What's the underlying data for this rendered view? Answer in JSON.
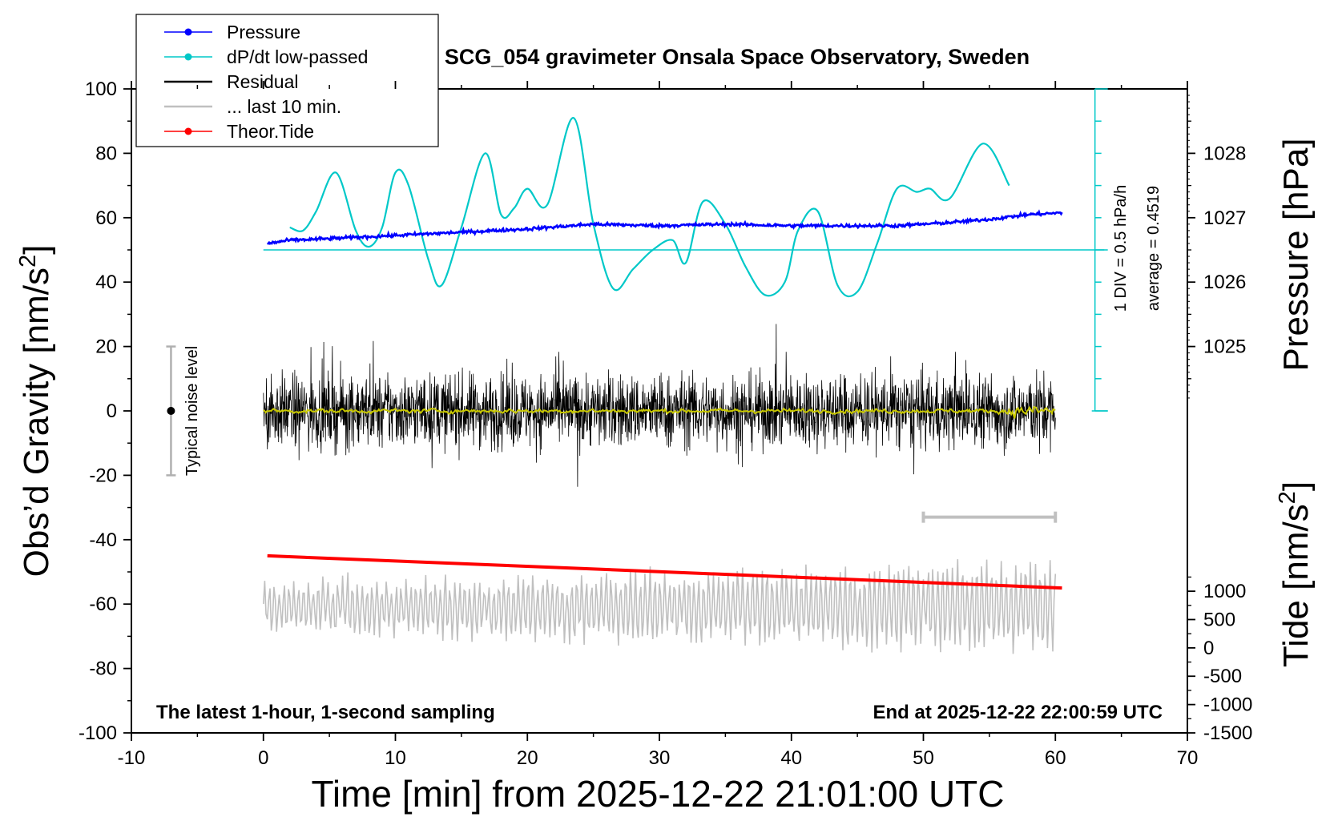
{
  "chart_data": {
    "type": "line",
    "title": "SCG_054 gravimeter Onsala Space Observatory, Sweden",
    "xlabel": "Time [min] from 2025-12-22 21:01:00 UTC",
    "ylabel_left": "Obs’d Gravity [nm/s",
    "ylabel_left_sup": "2",
    "ylabel_left_end": "]",
    "ylabel_right_top": "Pressure [hPa]",
    "ylabel_right_bottom": "Tide [nm/s",
    "ylabel_right_bottom_sup": "2",
    "ylabel_right_bottom_end": "]",
    "xlim": [
      -10,
      70
    ],
    "ylim": [
      -100,
      100
    ],
    "x_ticks": [
      "-10",
      "0",
      "10",
      "20",
      "30",
      "40",
      "50",
      "60",
      "70"
    ],
    "y_ticks": [
      "-100",
      "-80",
      "-60",
      "-40",
      "-20",
      "0",
      "20",
      "40",
      "60",
      "80",
      "100"
    ],
    "pressure_ticks": [
      "1025",
      "1026",
      "1027",
      "1028"
    ],
    "pressure_axis": {
      "gravity_at_1025": 20,
      "gravity_per_hPa": 20
    },
    "tide_ticks": [
      "-1500",
      "-1000",
      "-500",
      "0",
      "500",
      "1000"
    ],
    "tide_axis": {
      "gravity_at_minus1500": -100,
      "gravity_per_500": 8.8
    },
    "legend": [
      {
        "label": "Pressure",
        "color": "#0000ff",
        "marker": true
      },
      {
        "label": "dP/dt low-passed",
        "color": "#00c8c8",
        "marker": true
      },
      {
        "label": "Residual",
        "color": "#000000",
        "marker": false
      },
      {
        "label": "... last 10 min.",
        "color": "#c0c0c0",
        "marker": false
      },
      {
        "label": "Theor.Tide",
        "color": "#ff0000",
        "marker": true
      }
    ],
    "annotations": {
      "noise_label": "Typical noise level",
      "noise_range": [
        -20,
        20
      ],
      "noise_x": -7,
      "div_label": "1 DIV = 0.5 hPa/h",
      "average_label": "average = 0.4519",
      "dpdt_baseline": 50,
      "dpdt_scale_x": 63,
      "dpdt_scale_range": [
        0,
        100
      ],
      "bottom_left": "The latest 1-hour, 1-second sampling",
      "bottom_right": "End at 2025-12-22 22:00:59 UTC",
      "last10_bar": [
        50,
        60
      ],
      "last10_bar_y": -33
    },
    "series": [
      {
        "name": "Pressure",
        "color": "#0000ff",
        "noise": 0.5,
        "x": [
          0.3,
          2,
          5,
          10,
          15,
          20,
          25,
          30,
          35,
          40,
          45,
          48,
          52,
          55,
          58,
          60.5
        ],
        "y": [
          52,
          53,
          53.5,
          54.5,
          55.5,
          56.5,
          58,
          57.5,
          58,
          57.5,
          57.5,
          57.5,
          58.5,
          59.5,
          61,
          61.5
        ]
      },
      {
        "name": "dP/dt low-passed",
        "color": "#00c8c8",
        "x": [
          2,
          3,
          4,
          5.5,
          7,
          8,
          9,
          10,
          11,
          12.5,
          13.5,
          15,
          16.8,
          18,
          19,
          20,
          21.5,
          23.5,
          25,
          26.5,
          28,
          29.5,
          31,
          32,
          33.3,
          35,
          36.5,
          38,
          39.5,
          40.5,
          42,
          43.5,
          45,
          46.5,
          48,
          49.5,
          50.5,
          52,
          54.5,
          56.5
        ],
        "y": [
          57,
          56,
          62,
          74,
          56,
          51,
          57,
          74,
          70,
          47,
          39,
          57,
          80,
          61,
          63,
          69,
          64,
          91,
          58,
          38,
          44,
          50,
          53,
          46,
          65,
          58,
          45,
          36,
          40,
          56,
          62,
          39,
          37,
          52,
          69,
          68,
          69,
          66,
          83,
          70
        ]
      },
      {
        "name": "Residual",
        "color": "#000000",
        "noise": 11,
        "x": [
          0,
          60
        ],
        "y": [
          0,
          0
        ]
      },
      {
        "name": "Residual low-passed",
        "color": "#c8c800",
        "noise": 1.2,
        "x": [
          0,
          60
        ],
        "y": [
          0,
          0
        ]
      },
      {
        "name": "... last 10 min.",
        "color": "#c0c0c0",
        "noise": 9,
        "x": [
          0,
          60
        ],
        "y": [
          -61,
          -61
        ]
      },
      {
        "name": "Theor.Tide",
        "color": "#ff0000",
        "x": [
          0.3,
          60.5
        ],
        "y": [
          -45,
          -55
        ]
      }
    ]
  }
}
